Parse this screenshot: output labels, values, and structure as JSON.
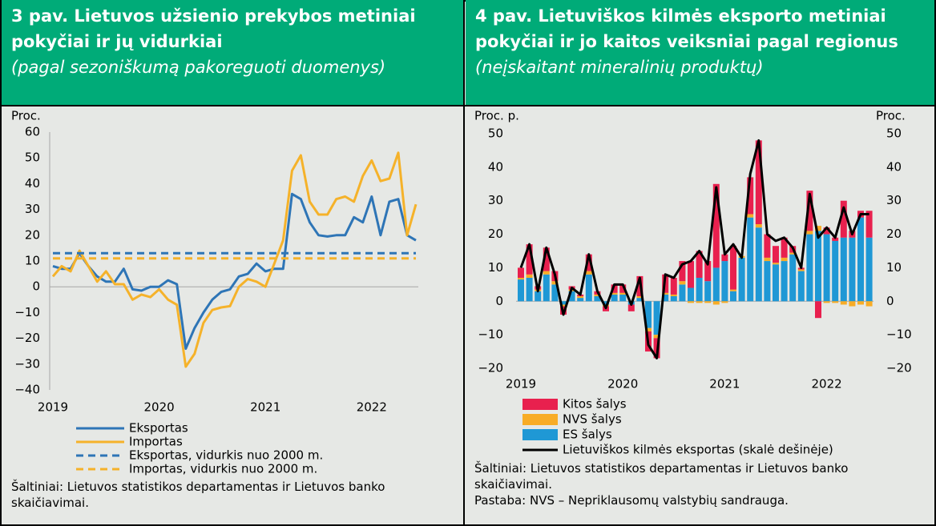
{
  "chart_data": [
    {
      "type": "line",
      "title": "3 pav. Lietuvos užsienio prekybos metiniai pokyčiai ir jų vidurkiai",
      "subtitle": "(pagal sezoniškumą pakoreguoti duomenys)",
      "y_label": "Proc.",
      "source": "Šaltiniai: Lietuvos statistikos departamentas ir Lietuvos banko skaičiavimai.",
      "categories": [
        "2019",
        null,
        null,
        null,
        null,
        null,
        null,
        null,
        null,
        null,
        null,
        null,
        "2020",
        null,
        null,
        null,
        null,
        null,
        null,
        null,
        null,
        null,
        null,
        null,
        "2021",
        null,
        null,
        null,
        null,
        null,
        null,
        null,
        null,
        null,
        null,
        null,
        "2022",
        null,
        null,
        null,
        null,
        null
      ],
      "ylim": [
        -40,
        60
      ],
      "yticks": [
        {
          "value": -40,
          "label": "−40"
        },
        {
          "value": -30,
          "label": "−30"
        },
        {
          "value": -20,
          "label": "−20"
        },
        {
          "value": -10,
          "label": "−10"
        },
        0,
        10,
        20,
        30,
        40,
        50,
        60
      ],
      "grid": false,
      "series": [
        {
          "name": "Eksportas",
          "color": "#2e75b6",
          "style": "solid",
          "values": [
            8,
            7,
            7,
            13,
            8,
            4,
            2,
            2,
            7,
            -1,
            -1.5,
            0,
            0,
            2.5,
            1,
            -24,
            -16,
            -10,
            -5,
            -2,
            -1,
            4,
            5,
            9,
            6,
            7,
            7,
            36,
            34,
            25,
            20,
            19.5,
            20,
            20,
            27,
            25,
            35,
            20,
            33,
            34,
            20,
            18
          ]
        },
        {
          "name": "Importas",
          "color": "#f5b22a",
          "style": "solid",
          "values": [
            4,
            8,
            6,
            14,
            8,
            2,
            6,
            1,
            1,
            -5,
            -3,
            -4,
            -1,
            -5,
            -7,
            -31,
            -26,
            -14,
            -9,
            -8,
            -7.5,
            0,
            3,
            2,
            0,
            9,
            18,
            45,
            51,
            33,
            28,
            28,
            34,
            35,
            33,
            43,
            49,
            41,
            42,
            52,
            20,
            32
          ]
        },
        {
          "name": "Eksportas, vidurkis nuo 2000 m.",
          "color": "#2e75b6",
          "style": "dashed",
          "values": [
            13,
            13,
            13,
            13,
            13,
            13,
            13,
            13,
            13,
            13,
            13,
            13,
            13,
            13,
            13,
            13,
            13,
            13,
            13,
            13,
            13,
            13,
            13,
            13,
            13,
            13,
            13,
            13,
            13,
            13,
            13,
            13,
            13,
            13,
            13,
            13,
            13,
            13,
            13,
            13,
            13,
            13
          ]
        },
        {
          "name": "Importas, vidurkis nuo 2000 m.",
          "color": "#f5b22a",
          "style": "dashed",
          "values": [
            11,
            11,
            11,
            11,
            11,
            11,
            11,
            11,
            11,
            11,
            11,
            11,
            11,
            11,
            11,
            11,
            11,
            11,
            11,
            11,
            11,
            11,
            11,
            11,
            11,
            11,
            11,
            11,
            11,
            11,
            11,
            11,
            11,
            11,
            11,
            11,
            11,
            11,
            11,
            11,
            11,
            11
          ]
        }
      ]
    },
    {
      "type": "bar",
      "stacked": true,
      "title": "4 pav. Lietuviškos kilmės eksporto metiniai pokyčiai ir jo kaitos veiksniai pagal regionus",
      "subtitle": "(neįskaitant mineralinių produktų)",
      "y_label": "Proc. p.",
      "y2_label": "Proc.",
      "source": "Šaltiniai: Lietuvos statistikos departamentas ir Lietuvos banko skaičiavimai.",
      "note": "Pastaba: NVS – Nepriklausomų valstybių sandrauga.",
      "categories": [
        "2019",
        null,
        null,
        null,
        null,
        null,
        null,
        null,
        null,
        null,
        null,
        null,
        "2020",
        null,
        null,
        null,
        null,
        null,
        null,
        null,
        null,
        null,
        null,
        null,
        "2021",
        null,
        null,
        null,
        null,
        null,
        null,
        null,
        null,
        null,
        null,
        null,
        "2022",
        null,
        null,
        null,
        null,
        null
      ],
      "ylim": [
        -20,
        50
      ],
      "yticks": [
        {
          "value": -20,
          "label": "−20"
        },
        {
          "value": -10,
          "label": "−10"
        },
        0,
        10,
        20,
        30,
        40,
        50
      ],
      "y2lim": [
        -20,
        50
      ],
      "y2ticks": [
        {
          "value": -20,
          "label": "−20"
        },
        {
          "value": -10,
          "label": "−10"
        },
        0,
        10,
        20,
        30,
        40,
        50
      ],
      "grid": false,
      "series": [
        {
          "name": "Kitos šalys",
          "color": "#e8204e",
          "values": [
            3,
            9,
            1,
            7,
            3,
            -2.5,
            1,
            0.5,
            5,
            1,
            -1.5,
            2.5,
            2.5,
            -2,
            6,
            -6,
            -6,
            5.5,
            5,
            6,
            8,
            8,
            6,
            25,
            2,
            13,
            0,
            11,
            25,
            7,
            5,
            6,
            2,
            0.5,
            12,
            -5,
            2,
            1,
            11,
            2,
            2,
            8
          ]
        },
        {
          "name": "NVS šalys",
          "color": "#f8ac26",
          "values": [
            0.5,
            1,
            0.5,
            1,
            1,
            -0.5,
            0.5,
            0.5,
            1,
            0.5,
            -0.5,
            0.5,
            0.5,
            0,
            0.5,
            -1,
            -1,
            0.5,
            0.5,
            1,
            -0.5,
            -0.5,
            -0.5,
            -1,
            -0.5,
            0.5,
            0.5,
            1,
            1,
            1,
            0.5,
            1,
            0.5,
            0.5,
            1,
            1.5,
            -0.5,
            -0.5,
            -1,
            -1.5,
            -1,
            -1.5
          ]
        },
        {
          "name": "ES šalys",
          "color": "#1f98d5",
          "values": [
            6.5,
            7,
            3,
            8,
            5,
            -1,
            3,
            1,
            8,
            1.5,
            -1,
            2,
            2,
            -1,
            1,
            -8,
            -10,
            2,
            1.5,
            5,
            4,
            7,
            6,
            10,
            12,
            3,
            13,
            25,
            22,
            12,
            11,
            12,
            14,
            9,
            20,
            21,
            20,
            18,
            19,
            19,
            25,
            19
          ]
        },
        {
          "name": "Lietuviškos kilmės eksportas (skalė dešinėje)",
          "color": "#000000",
          "type": "line",
          "axis": "y2",
          "values": [
            10,
            17,
            3,
            16,
            8,
            -4,
            4,
            2,
            14,
            3,
            -2,
            5,
            5,
            -1,
            7,
            -13,
            -17,
            8,
            7,
            11,
            12,
            15,
            11,
            34,
            14,
            17,
            13,
            38,
            48,
            20,
            18,
            19,
            16,
            10,
            32,
            19,
            22,
            19,
            28,
            20,
            26,
            26
          ]
        }
      ]
    }
  ]
}
